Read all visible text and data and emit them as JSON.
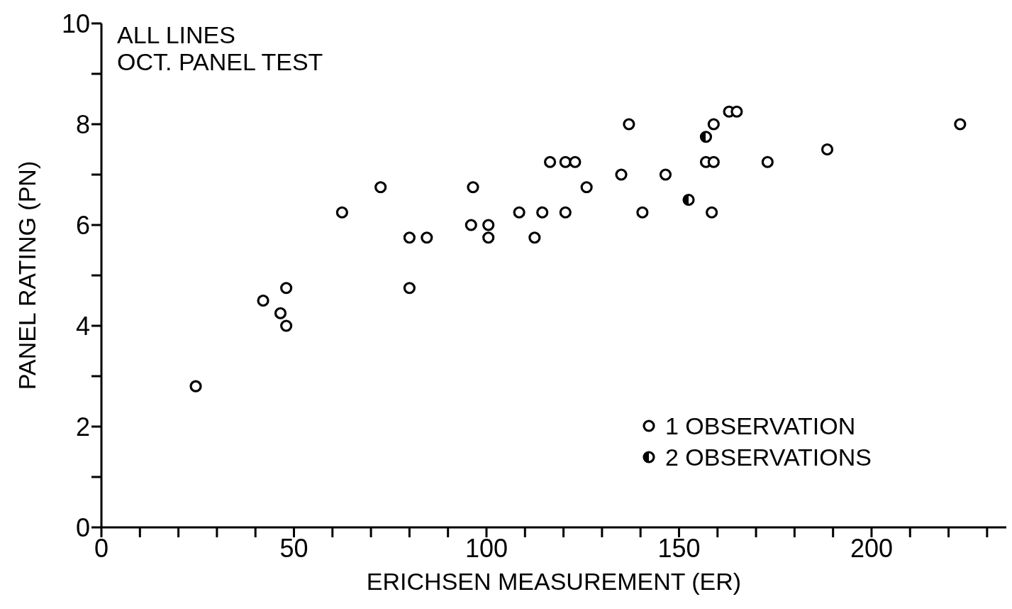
{
  "chart_data": {
    "type": "scatter",
    "title": "ALL LINES",
    "subtitle": "OCT. PANEL TEST",
    "xlabel": "ERICHSEN MEASUREMENT (ER)",
    "ylabel": "PANEL RATING (PN)",
    "xlim": [
      0,
      235
    ],
    "ylim": [
      0,
      10
    ],
    "xticks": [
      0,
      {
        "value": 10,
        "label": null
      },
      {
        "value": 20,
        "label": null
      },
      {
        "value": 30,
        "label": null
      },
      {
        "value": 40,
        "label": null
      },
      50,
      {
        "value": 60,
        "label": null
      },
      {
        "value": 70,
        "label": null
      },
      {
        "value": 80,
        "label": null
      },
      {
        "value": 90,
        "label": null
      },
      100,
      {
        "value": 110,
        "label": null
      },
      {
        "value": 120,
        "label": null
      },
      {
        "value": 130,
        "label": null
      },
      {
        "value": 140,
        "label": null
      },
      150,
      {
        "value": 160,
        "label": null
      },
      {
        "value": 170,
        "label": null
      },
      {
        "value": 180,
        "label": null
      },
      {
        "value": 190,
        "label": null
      },
      200,
      {
        "value": 210,
        "label": null
      },
      {
        "value": 220,
        "label": null
      },
      {
        "value": 230,
        "label": null
      }
    ],
    "yticks": [
      0,
      {
        "value": 1,
        "label": null
      },
      2,
      {
        "value": 3,
        "label": null
      },
      4,
      {
        "value": 5,
        "label": null
      },
      6,
      {
        "value": 7,
        "label": null
      },
      8,
      {
        "value": 9,
        "label": null
      },
      10
    ],
    "grid": false,
    "legend": "bottom right",
    "marker": "circle",
    "series": [
      {
        "name": "1 OBSERVATION",
        "color": "#000000",
        "x": [
          24.5,
          42,
          46.5,
          48,
          48,
          62.5,
          72.5,
          80,
          80,
          84.5,
          96,
          96.5,
          100.5,
          100.5,
          108.5,
          112.5,
          114.5,
          116.5,
          120.5,
          120.5,
          123,
          126,
          135,
          137,
          140.5,
          146.5,
          158.5,
          157,
          159,
          159,
          163,
          165,
          173,
          188.5,
          223
        ],
        "values": [
          2.8,
          4.5,
          4.25,
          4,
          4.75,
          6.25,
          6.75,
          5.75,
          4.75,
          5.75,
          6,
          6.75,
          6,
          5.75,
          6.25,
          5.75,
          6.25,
          7.25,
          6.25,
          7.25,
          7.25,
          6.75,
          7,
          8,
          6.25,
          7,
          6.25,
          7.25,
          7.25,
          8,
          8.25,
          8.25,
          7.25,
          7.5,
          8
        ]
      },
      {
        "name": "2 OBSERVATIONS",
        "color": "#000000",
        "x": [
          152.5,
          157
        ],
        "values": [
          6.5,
          7.75
        ]
      }
    ]
  }
}
